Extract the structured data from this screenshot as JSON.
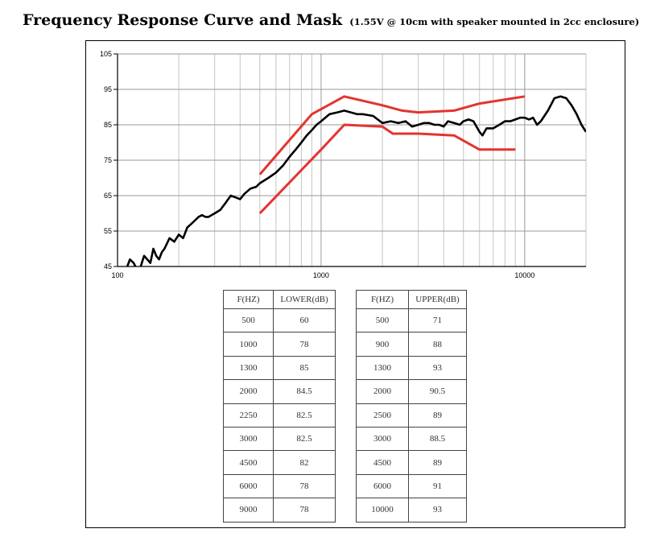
{
  "header": {
    "title": "Frequency Response Curve and Mask",
    "subtitle": "(1.55V @ 10cm with speaker mounted in 2cc enclosure)"
  },
  "chart_data": {
    "type": "line",
    "x_scale": "log",
    "xlim": [
      100,
      20000
    ],
    "ylim": [
      45,
      105
    ],
    "x_ticks": [
      "100",
      "1000",
      "10000"
    ],
    "y_ticks": [
      "105",
      "95",
      "85",
      "75",
      "65",
      "55",
      "45"
    ],
    "grid": true,
    "colors": {
      "response": "#000000",
      "mask": "#e3342f"
    },
    "series": [
      {
        "key": "response",
        "x": [
          110,
          115,
          120,
          125,
          130,
          135,
          140,
          145,
          150,
          155,
          160,
          165,
          170,
          180,
          190,
          200,
          210,
          220,
          230,
          240,
          250,
          260,
          270,
          280,
          300,
          320,
          340,
          360,
          380,
          400,
          420,
          450,
          480,
          500,
          550,
          600,
          650,
          700,
          750,
          800,
          850,
          900,
          950,
          1000,
          1100,
          1200,
          1300,
          1400,
          1500,
          1600,
          1800,
          2000,
          2200,
          2400,
          2600,
          2800,
          3000,
          3200,
          3400,
          3600,
          3800,
          4000,
          4200,
          4500,
          4800,
          5000,
          5300,
          5600,
          6000,
          6200,
          6500,
          7000,
          7500,
          8000,
          8500,
          9000,
          9500,
          10000,
          10500,
          11000,
          11500,
          12000,
          13000,
          14000,
          15000,
          16000,
          17000,
          18000,
          19000,
          20000
        ],
        "y": [
          44,
          47,
          46,
          44,
          45,
          48,
          47,
          46,
          50,
          48,
          47,
          49,
          50,
          53,
          52,
          54,
          53,
          56,
          57,
          58,
          59,
          59.5,
          59,
          59,
          60,
          61,
          63,
          65,
          64.5,
          64,
          65.5,
          67,
          67.5,
          68.5,
          70,
          71.5,
          73.5,
          76,
          78,
          80,
          82,
          83.5,
          85,
          86,
          88,
          88.5,
          89,
          88.5,
          88,
          88,
          87.5,
          85.5,
          86,
          85.5,
          86,
          84.5,
          85,
          85.5,
          85.5,
          85,
          85,
          84.5,
          86,
          85.5,
          85,
          86,
          86.5,
          86,
          83,
          82,
          84,
          84,
          85,
          86,
          86,
          86.5,
          87,
          87,
          86.5,
          87,
          85,
          86,
          89,
          92.5,
          93,
          92.5,
          90.5,
          88,
          85,
          83
        ]
      },
      {
        "key": "mask_upper",
        "x": [
          500,
          900,
          1300,
          2000,
          2500,
          3000,
          4500,
          6000,
          10000
        ],
        "y": [
          71,
          88,
          93,
          90.5,
          89,
          88.5,
          89,
          91,
          93
        ]
      },
      {
        "key": "mask_lower",
        "x": [
          500,
          1000,
          1300,
          2000,
          2250,
          3000,
          4500,
          6000,
          9000
        ],
        "y": [
          60,
          78,
          85,
          84.5,
          82.5,
          82.5,
          82,
          78,
          78
        ]
      }
    ]
  },
  "tables": {
    "lower": {
      "headers": [
        "F(HZ)",
        "LOWER(dB)"
      ],
      "rows": [
        [
          "500",
          "60"
        ],
        [
          "1000",
          "78"
        ],
        [
          "1300",
          "85"
        ],
        [
          "2000",
          "84.5"
        ],
        [
          "2250",
          "82.5"
        ],
        [
          "3000",
          "82.5"
        ],
        [
          "4500",
          "82"
        ],
        [
          "6000",
          "78"
        ],
        [
          "9000",
          "78"
        ]
      ]
    },
    "upper": {
      "headers": [
        "F(HZ)",
        "UPPER(dB)"
      ],
      "rows": [
        [
          "500",
          "71"
        ],
        [
          "900",
          "88"
        ],
        [
          "1300",
          "93"
        ],
        [
          "2000",
          "90.5"
        ],
        [
          "2500",
          "89"
        ],
        [
          "3000",
          "88.5"
        ],
        [
          "4500",
          "89"
        ],
        [
          "6000",
          "91"
        ],
        [
          "10000",
          "93"
        ]
      ]
    }
  }
}
